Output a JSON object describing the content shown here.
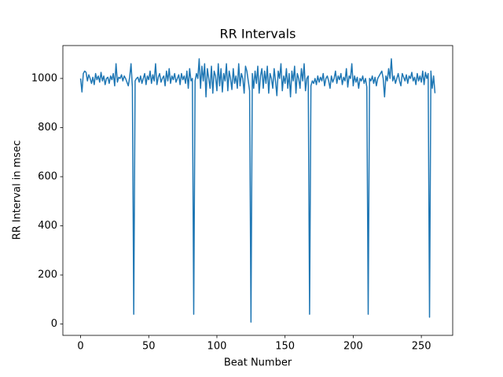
{
  "chart_data": {
    "type": "line",
    "title": "RR Intervals",
    "xlabel": "Beat Number",
    "ylabel": "RR Interval in msec",
    "color": "#1f77b4",
    "x": [
      0,
      1,
      2,
      3,
      4,
      5,
      6,
      7,
      8,
      9,
      10,
      11,
      12,
      13,
      14,
      15,
      16,
      17,
      18,
      19,
      20,
      21,
      22,
      23,
      24,
      25,
      26,
      27,
      28,
      29,
      30,
      31,
      32,
      33,
      34,
      35,
      36,
      37,
      38,
      39,
      40,
      41,
      42,
      43,
      44,
      45,
      46,
      47,
      48,
      49,
      50,
      51,
      52,
      53,
      54,
      55,
      56,
      57,
      58,
      59,
      60,
      61,
      62,
      63,
      64,
      65,
      66,
      67,
      68,
      69,
      70,
      71,
      72,
      73,
      74,
      75,
      76,
      77,
      78,
      79,
      80,
      81,
      82,
      83,
      84,
      85,
      86,
      87,
      88,
      89,
      90,
      91,
      92,
      93,
      94,
      95,
      96,
      97,
      98,
      99,
      100,
      101,
      102,
      103,
      104,
      105,
      106,
      107,
      108,
      109,
      110,
      111,
      112,
      113,
      114,
      115,
      116,
      117,
      118,
      119,
      120,
      121,
      122,
      123,
      124,
      125,
      126,
      127,
      128,
      129,
      130,
      131,
      132,
      133,
      134,
      135,
      136,
      137,
      138,
      139,
      140,
      141,
      142,
      143,
      144,
      145,
      146,
      147,
      148,
      149,
      150,
      151,
      152,
      153,
      154,
      155,
      156,
      157,
      158,
      159,
      160,
      161,
      162,
      163,
      164,
      165,
      166,
      167,
      168,
      169,
      170,
      171,
      172,
      173,
      174,
      175,
      176,
      177,
      178,
      179,
      180,
      181,
      182,
      183,
      184,
      185,
      186,
      187,
      188,
      189,
      190,
      191,
      192,
      193,
      194,
      195,
      196,
      197,
      198,
      199,
      200,
      201,
      202,
      203,
      204,
      205,
      206,
      207,
      208,
      209,
      210,
      211,
      212,
      213,
      214,
      215,
      216,
      217,
      218,
      219,
      220,
      221,
      222,
      223,
      224,
      225,
      226,
      227,
      228,
      229,
      230,
      231,
      232,
      233,
      234,
      235,
      236,
      237,
      238,
      239,
      240,
      241,
      242,
      243,
      244,
      245,
      246,
      247,
      248,
      249,
      250,
      251,
      252,
      253,
      254,
      255,
      256,
      257,
      258,
      259,
      260
    ],
    "values": [
      1000,
      945,
      1020,
      1030,
      1025,
      990,
      1015,
      1000,
      980,
      1005,
      975,
      1020,
      995,
      1010,
      985,
      1025,
      990,
      1010,
      975,
      1000,
      1005,
      980,
      1010,
      995,
      1020,
      970,
      1060,
      985,
      1005,
      1000,
      1015,
      990,
      1010,
      1000,
      985,
      970,
      1005,
      1060,
      965,
      40,
      990,
      1000,
      1005,
      985,
      1010,
      980,
      1000,
      1020,
      975,
      1010,
      995,
      1030,
      980,
      1015,
      990,
      1060,
      975,
      1005,
      1020,
      985,
      1000,
      1010,
      970,
      1030,
      990,
      1040,
      980,
      1010,
      995,
      1020,
      985,
      1000,
      1015,
      975,
      1020,
      995,
      1010,
      980,
      1030,
      960,
      1040,
      990,
      1000,
      40,
      990,
      1020,
      1000,
      1080,
      960,
      1050,
      990,
      1060,
      925,
      1040,
      1000,
      960,
      1050,
      940,
      1030,
      1010,
      950,
      1060,
      970,
      1040,
      945,
      1020,
      990,
      1060,
      950,
      1030,
      1000,
      955,
      1040,
      980,
      1010,
      960,
      1060,
      970,
      1020,
      1000,
      940,
      1050,
      1030,
      990,
      950,
      8,
      1020,
      960,
      1030,
      980,
      1050,
      940,
      1010,
      1040,
      960,
      1030,
      980,
      1050,
      940,
      1020,
      1000,
      960,
      1040,
      990,
      930,
      1030,
      1000,
      1060,
      950,
      1010,
      980,
      1040,
      960,
      1020,
      925,
      1030,
      990,
      1050,
      940,
      1020,
      1000,
      960,
      1040,
      990,
      1060,
      950,
      1000,
      1010,
      40,
      970,
      990,
      980,
      1000,
      975,
      1010,
      985,
      1005,
      990,
      1020,
      970,
      1000,
      1010,
      990,
      960,
      1010,
      985,
      1000,
      1030,
      980,
      1010,
      995,
      1020,
      975,
      1005,
      990,
      1040,
      965,
      1010,
      1000,
      1060,
      970,
      1010,
      985,
      1005,
      960,
      1000,
      990,
      1010,
      980,
      1000,
      965,
      40,
      1000,
      990,
      1010,
      980,
      1005,
      970,
      1000,
      1010,
      1020,
      1030,
      1000,
      925,
      1010,
      990,
      1040,
      1000,
      1080,
      990,
      1010,
      980,
      1000,
      1020,
      990,
      970,
      1020,
      1005,
      990,
      1015,
      980,
      1010,
      1000,
      1025,
      990,
      1005,
      975,
      1020,
      990,
      1010,
      985,
      1030,
      975,
      1025,
      1000,
      1020,
      28,
      1030,
      960,
      1010,
      940
    ],
    "xlim": [
      -13,
      273
    ],
    "ylim": [
      -46,
      1134
    ],
    "xticks": [
      0,
      50,
      100,
      150,
      200,
      250
    ],
    "yticks": [
      0,
      200,
      400,
      600,
      800,
      1000
    ]
  }
}
